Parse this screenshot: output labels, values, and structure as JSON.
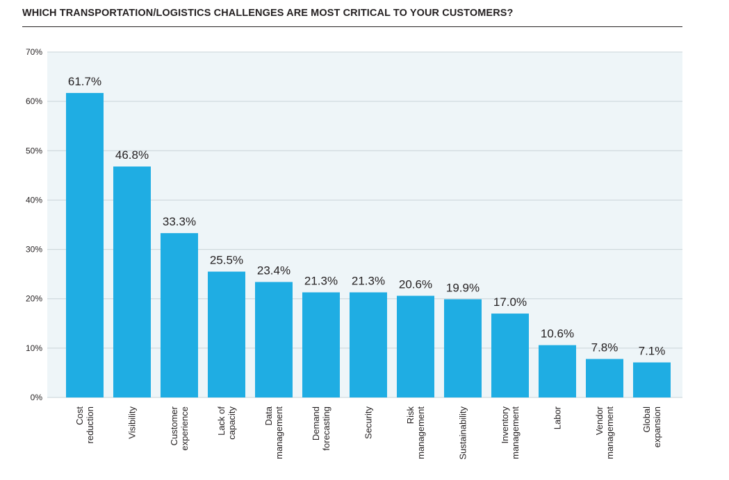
{
  "title": "WHICH TRANSPORTATION/LOGISTICS CHALLENGES ARE MOST CRITICAL TO YOUR CUSTOMERS?",
  "colors": {
    "bar": "#1fade3",
    "plot_bg": "#eef5f8",
    "grid": "#c9d3d8",
    "text": "#231f20"
  },
  "chart_data": {
    "type": "bar",
    "title": "WHICH TRANSPORTATION/LOGISTICS CHALLENGES ARE MOST CRITICAL TO YOUR CUSTOMERS?",
    "xlabel": "",
    "ylabel": "",
    "ylim": [
      0,
      70
    ],
    "grid": true,
    "yticks": [
      "0%",
      "10%",
      "20%",
      "30%",
      "40%",
      "50%",
      "60%",
      "70%"
    ],
    "categories": [
      [
        "Cost",
        "reduction"
      ],
      [
        "Visibility"
      ],
      [
        "Customer",
        "experience"
      ],
      [
        "Lack of",
        "capacity"
      ],
      [
        "Data",
        "management"
      ],
      [
        "Demand",
        "forecasting"
      ],
      [
        "Security"
      ],
      [
        "Risk",
        "management"
      ],
      [
        "Sustainability"
      ],
      [
        "Inventory",
        "management"
      ],
      [
        "Labor"
      ],
      [
        "Vendor",
        "management"
      ],
      [
        "Global",
        "expansion"
      ]
    ],
    "values": [
      61.7,
      46.8,
      33.3,
      25.5,
      23.4,
      21.3,
      21.3,
      20.6,
      19.9,
      17.0,
      10.6,
      7.8,
      7.1
    ],
    "value_labels": [
      "61.7%",
      "46.8%",
      "33.3%",
      "25.5%",
      "23.4%",
      "21.3%",
      "21.3%",
      "20.6%",
      "19.9%",
      "17.0%",
      "10.6%",
      "7.8%",
      "7.1%"
    ]
  }
}
